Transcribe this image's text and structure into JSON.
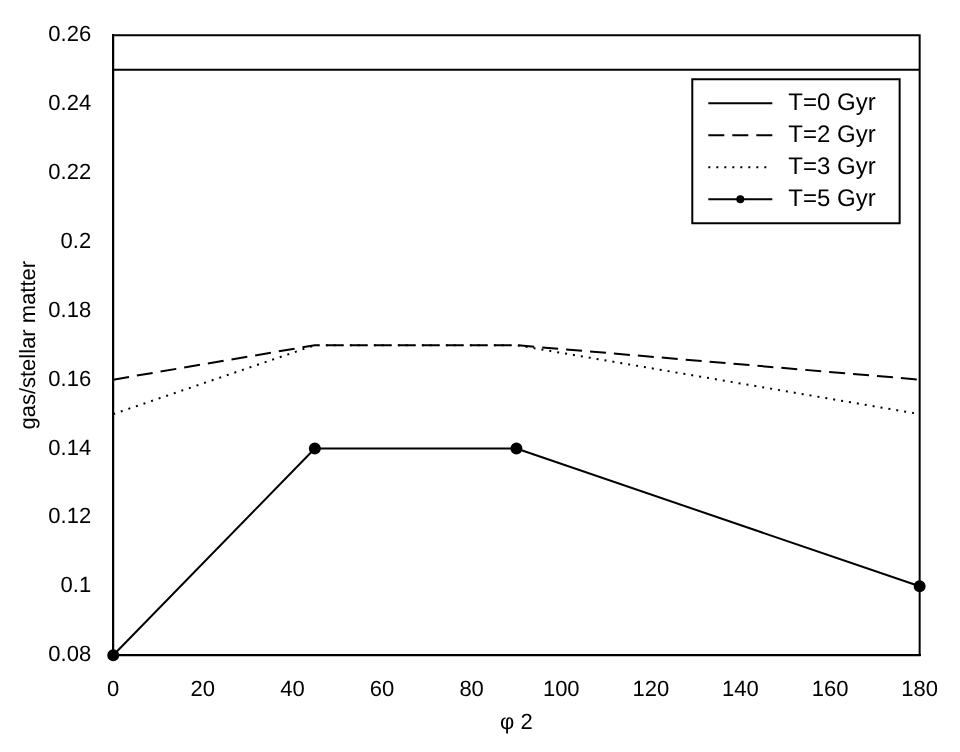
{
  "chart_data": {
    "type": "line",
    "xlabel": "φ 2",
    "ylabel": "gas/stellar matter",
    "xlim": [
      0,
      180
    ],
    "xticks": [
      0,
      20,
      40,
      60,
      80,
      100,
      120,
      140,
      160,
      180
    ],
    "ylim": [
      0.08,
      0.26
    ],
    "yticks": [
      0.08,
      0.1,
      0.12,
      0.14,
      0.16,
      0.18,
      0.2,
      0.22,
      0.24,
      0.26
    ],
    "grid": false,
    "legend": "top right",
    "series": [
      {
        "name": "T=0 Gyr",
        "color": "#000000",
        "line_style": "solid",
        "marker": "none",
        "x": [
          0,
          180
        ],
        "values": [
          0.25,
          0.25
        ]
      },
      {
        "name": "T=2 Gyr",
        "color": "#000000",
        "line_style": "dashed",
        "marker": "none",
        "x": [
          0,
          45,
          90,
          180
        ],
        "values": [
          0.16,
          0.17,
          0.17,
          0.16
        ]
      },
      {
        "name": "T=3 Gyr",
        "color": "#000000",
        "line_style": "dotted",
        "marker": "none",
        "x": [
          0,
          45,
          90,
          180
        ],
        "values": [
          0.15,
          0.17,
          0.17,
          0.15
        ]
      },
      {
        "name": "T=5 Gyr",
        "color": "#000000",
        "line_style": "solid",
        "marker": "circle",
        "x": [
          0,
          45,
          90,
          180
        ],
        "values": [
          0.08,
          0.14,
          0.14,
          0.1
        ]
      }
    ]
  }
}
